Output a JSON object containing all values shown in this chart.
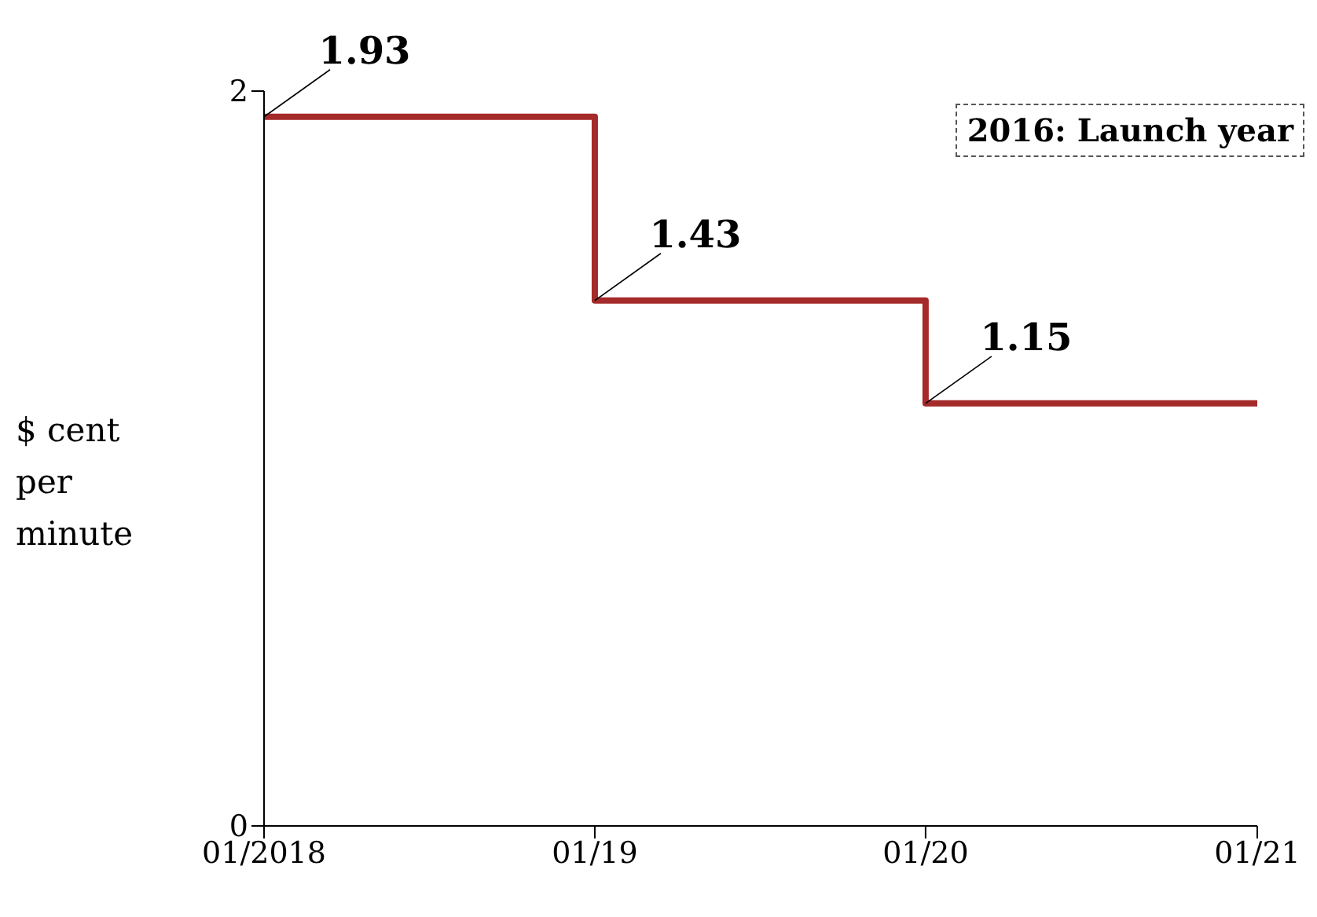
{
  "chart_data": {
    "type": "step",
    "ylabel": "$ cent per minute",
    "annotations": [
      "2016: Launch year"
    ],
    "x": [
      "2018-01",
      "2019-01",
      "2020-01",
      "2021-01"
    ],
    "series": [
      {
        "color": "#a52a2a",
        "values": [
          1.93,
          1.43,
          1.15,
          1.15
        ],
        "value_labels": [
          "1.93",
          "1.43",
          "1.15",
          null
        ]
      }
    ],
    "xlim": [
      "2018-01",
      "2021-01"
    ],
    "xticks": [
      {
        "value": "2018-01",
        "label": "01/2018"
      },
      {
        "value": "2019-01",
        "label": "01/19"
      },
      {
        "value": "2020-01",
        "label": "01/20"
      },
      {
        "value": "2021-01",
        "label": "01/21"
      }
    ],
    "ylim": [
      0,
      2
    ],
    "yticks": [
      0,
      2
    ],
    "grid": false,
    "marker": "none",
    "line_style": "solid"
  }
}
